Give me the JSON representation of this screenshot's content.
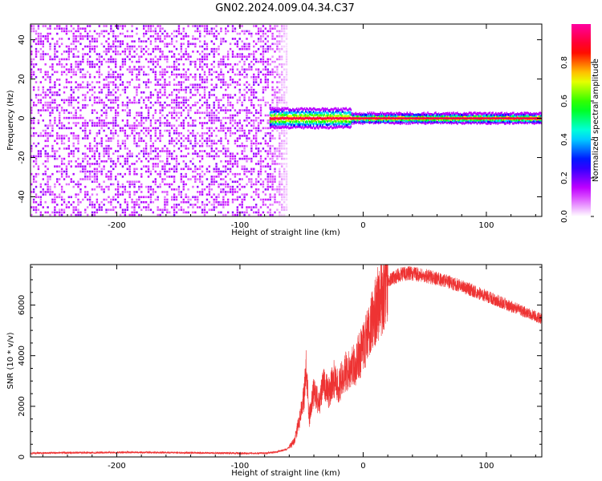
{
  "title": "GN02.2024.009.04.34.C37",
  "chart_data": [
    {
      "type": "heatmap",
      "title": "GN02.2024.009.04.34.C37",
      "xlabel": "Height of straight line (km)",
      "ylabel": "Frequency (Hz)",
      "xlim": [
        -270,
        145
      ],
      "ylim": [
        -50,
        48
      ],
      "xticks": [
        -200,
        -100,
        0,
        100
      ],
      "yticks": [
        -40,
        -20,
        0,
        20,
        40
      ],
      "colorbar": {
        "label": "Normalized spectral amplitude",
        "range": [
          0,
          1
        ],
        "ticks": [
          "0.0",
          "0.2",
          "0.4",
          "0.6",
          "0.8"
        ],
        "colors": [
          "#ffffff",
          "#c800ff",
          "#0000ff",
          "#00ffff",
          "#00ff00",
          "#ffff00",
          "#ff0000",
          "#ff00a0"
        ]
      },
      "regions": [
        {
          "x_range": [
            -270,
            -62
          ],
          "freq_range": [
            -50,
            48
          ],
          "amplitude": 0.12,
          "pattern": "broadband noise"
        },
        {
          "x_range": [
            -76,
            145
          ],
          "freq_range": [
            -1,
            1
          ],
          "amplitude": 0.95,
          "pattern": "narrowband line"
        }
      ],
      "grid": false
    },
    {
      "type": "line",
      "xlabel": "Height of straight line (km)",
      "ylabel": "SNR (10 * v/v)",
      "xlim": [
        -270,
        145
      ],
      "ylim": [
        0,
        7600
      ],
      "xticks": [
        -200,
        -100,
        0,
        100
      ],
      "yticks": [
        0,
        2000,
        4000,
        6000
      ],
      "color": "#ee3333",
      "x": [
        -270,
        -250,
        -230,
        -210,
        -190,
        -170,
        -150,
        -130,
        -110,
        -90,
        -80,
        -70,
        -62,
        -56,
        -52,
        -48,
        -46,
        -44,
        -40,
        -36,
        -32,
        -28,
        -24,
        -20,
        -16,
        -12,
        -8,
        -4,
        0,
        5,
        10,
        15,
        20,
        25,
        30,
        35,
        40,
        45,
        50,
        60,
        70,
        80,
        90,
        100,
        110,
        120,
        130,
        140,
        145
      ],
      "y": [
        150,
        160,
        170,
        175,
        180,
        175,
        170,
        160,
        150,
        140,
        150,
        200,
        300,
        600,
        1400,
        2400,
        3600,
        1500,
        2600,
        2100,
        2900,
        2500,
        3100,
        2700,
        3300,
        3400,
        3600,
        3900,
        4200,
        5000,
        5800,
        6400,
        6900,
        7100,
        7200,
        7250,
        7250,
        7200,
        7150,
        7050,
        6900,
        6750,
        6550,
        6350,
        6150,
        5950,
        5750,
        5550,
        5450
      ],
      "grid": false
    }
  ]
}
